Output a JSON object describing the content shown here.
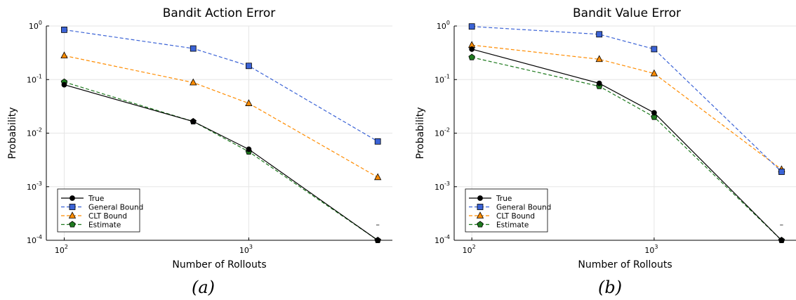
{
  "colors": {
    "true": "#000000",
    "general": "#3b63d6",
    "clt": "#ff8c00",
    "estimate": "#1f7a1f",
    "grid": "#e6e6e6"
  },
  "chart_data": [
    {
      "type": "line",
      "title": "Bandit Action Error",
      "xlabel": "Number of Rollouts",
      "ylabel": "Probability",
      "xscale": "log",
      "yscale": "log",
      "xlim": [
        80,
        6000
      ],
      "ylim": [
        0.0001,
        1
      ],
      "x_ticks": [
        {
          "value": 100,
          "base": "10",
          "exp": "2"
        },
        {
          "value": 1000,
          "base": "10",
          "exp": "3"
        }
      ],
      "y_ticks": [
        {
          "value": 1,
          "base": "10",
          "exp": "0"
        },
        {
          "value": 0.1,
          "base": "10",
          "exp": "-1"
        },
        {
          "value": 0.01,
          "base": "10",
          "exp": "-2"
        },
        {
          "value": 0.001,
          "base": "10",
          "exp": "-3"
        },
        {
          "value": 0.0001,
          "base": "10",
          "exp": "-4"
        }
      ],
      "grid": true,
      "legend_position": "bottom-left",
      "x": [
        100,
        500,
        1000,
        5000
      ],
      "series": [
        {
          "name": "True",
          "key": "true",
          "marker": "circle",
          "dashed": false,
          "values": [
            0.08,
            0.0165,
            0.005,
            0.0001
          ]
        },
        {
          "name": "General Bound",
          "key": "general",
          "marker": "square",
          "dashed": true,
          "values": [
            0.85,
            0.38,
            0.18,
            0.007
          ]
        },
        {
          "name": "CLT Bound",
          "key": "clt",
          "marker": "triangle",
          "dashed": true,
          "values": [
            0.28,
            0.088,
            0.036,
            0.0015
          ]
        },
        {
          "name": "Estimate",
          "key": "estimate",
          "marker": "pentagon",
          "dashed": true,
          "values": [
            0.09,
            0.0165,
            0.0045,
            0.0001
          ]
        }
      ],
      "annotation": {
        "text": "–",
        "x": 5000,
        "y": 0.0002
      },
      "panel_label": "(a)"
    },
    {
      "type": "line",
      "title": "Bandit Value Error",
      "xlabel": "Number of Rollouts",
      "ylabel": "Probability",
      "xscale": "log",
      "yscale": "log",
      "xlim": [
        80,
        6000
      ],
      "ylim": [
        0.0001,
        1
      ],
      "x_ticks": [
        {
          "value": 100,
          "base": "10",
          "exp": "2"
        },
        {
          "value": 1000,
          "base": "10",
          "exp": "3"
        }
      ],
      "y_ticks": [
        {
          "value": 1,
          "base": "10",
          "exp": "0"
        },
        {
          "value": 0.1,
          "base": "10",
          "exp": "-1"
        },
        {
          "value": 0.01,
          "base": "10",
          "exp": "-2"
        },
        {
          "value": 0.001,
          "base": "10",
          "exp": "-3"
        },
        {
          "value": 0.0001,
          "base": "10",
          "exp": "-4"
        }
      ],
      "grid": true,
      "legend_position": "bottom-left",
      "x": [
        100,
        500,
        1000,
        5000
      ],
      "series": [
        {
          "name": "True",
          "key": "true",
          "marker": "circle",
          "dashed": false,
          "values": [
            0.37,
            0.085,
            0.024,
            0.0001
          ]
        },
        {
          "name": "General Bound",
          "key": "general",
          "marker": "square",
          "dashed": true,
          "values": [
            0.98,
            0.7,
            0.37,
            0.0019
          ]
        },
        {
          "name": "CLT Bound",
          "key": "clt",
          "marker": "triangle",
          "dashed": true,
          "values": [
            0.44,
            0.24,
            0.13,
            0.0021
          ]
        },
        {
          "name": "Estimate",
          "key": "estimate",
          "marker": "pentagon",
          "dashed": true,
          "values": [
            0.26,
            0.075,
            0.02,
            0.0001
          ]
        }
      ],
      "annotation": {
        "text": "–",
        "x": 5000,
        "y": 0.0002
      },
      "panel_label": "(b)"
    }
  ]
}
